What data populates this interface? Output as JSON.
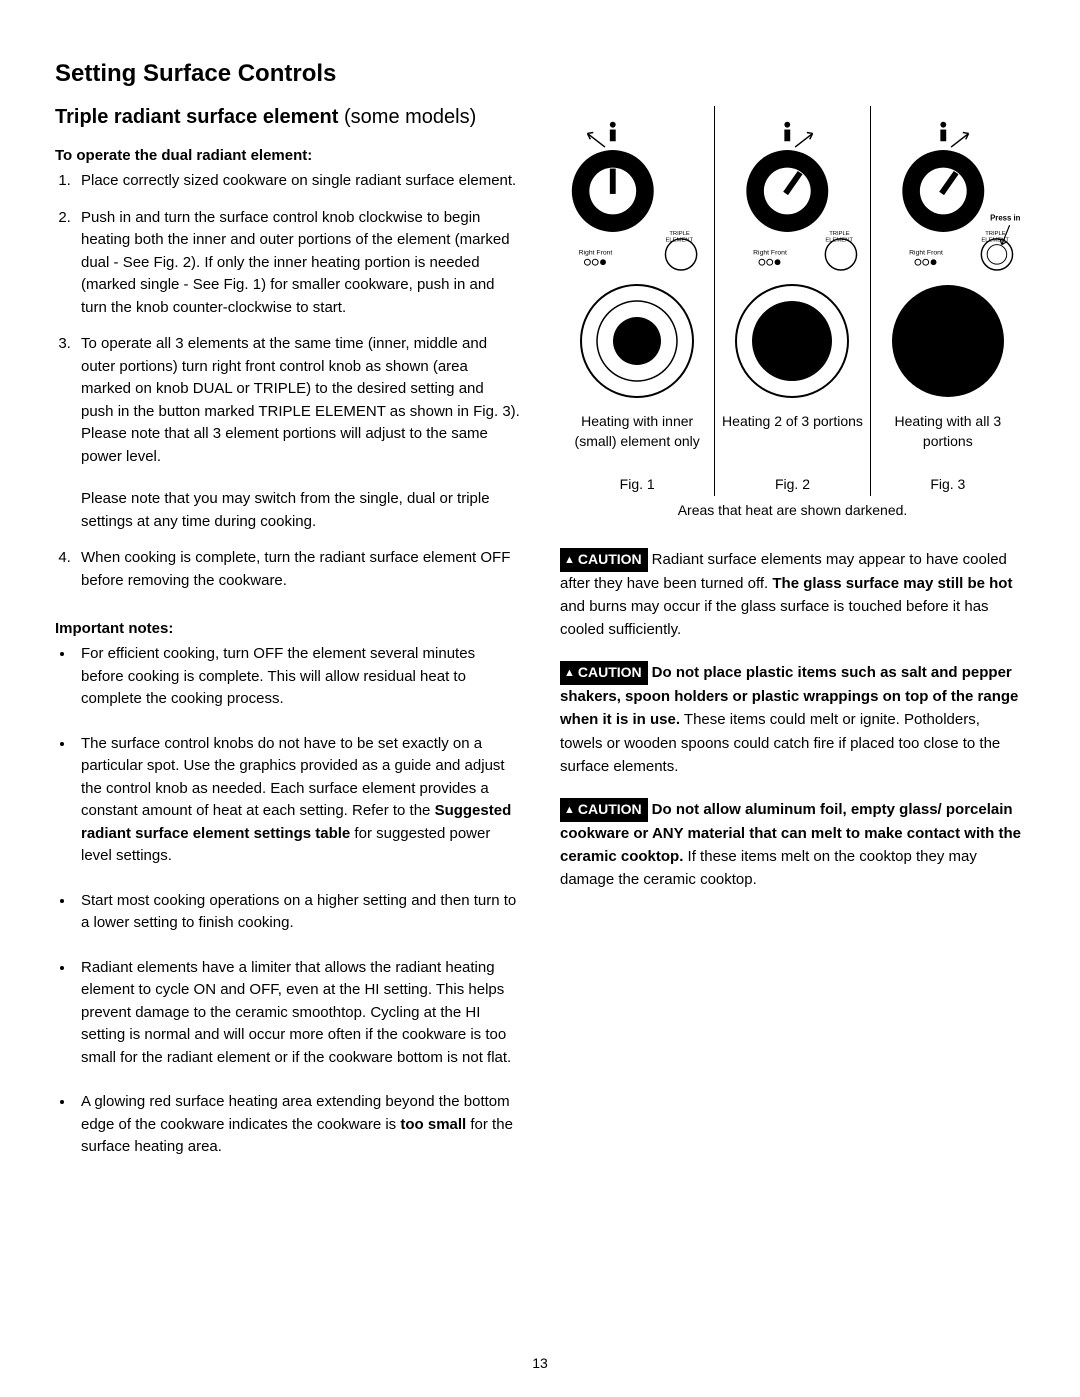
{
  "page_number": "13",
  "title": "Setting Surface Controls",
  "subtitle_bold": "Triple radiant surface element ",
  "subtitle_normal": "(some models)",
  "operate_heading": "To operate the dual radiant element:",
  "steps": [
    "Place correctly sized cookware on single radiant surface element.",
    "Push in and turn the surface control knob clockwise to begin heating both the inner and outer portions of the element (marked dual - See Fig. 2). If only the inner heating portion is needed (marked single - See Fig. 1) for smaller cookware, push in and turn the knob counter-clockwise to start.",
    "To operate all 3 elements at the same time (inner, middle and outer portions) turn right front control knob as shown (area marked on knob DUAL or TRIPLE) to the desired setting and push in the button marked TRIPLE ELEMENT as shown in Fig. 3). Please note that all 3 element portions will adjust to the same power level.",
    "When cooking is complete, turn the radiant surface element OFF before removing the cookware."
  ],
  "step3_note": "Please note that you may switch from the single, dual or triple settings at any time during cooking.",
  "important_heading": "Important notes:",
  "notes": [
    "For efficient cooking, turn OFF the element several minutes before cooking is complete. This will allow residual heat to complete the cooking process.",
    "The surface control knobs do not have to be set exactly on a particular spot. Use the graphics provided as a guide and adjust the control knob as needed. Each surface element provides a constant amount of heat at each setting. Refer to the <b>Suggested radiant surface element settings table</b> for suggested power level settings.",
    "Start most cooking operations on a higher setting and then turn to a lower setting to finish cooking.",
    "Radiant elements have a limiter that allows the radiant heating element to cycle ON and OFF, even at the HI setting. This helps prevent damage to the ceramic smoothtop. Cycling at the HI setting is normal and will occur more often if the cookware is too small for the radiant element or if the cookware bottom is not flat.",
    "A glowing red surface heating area extending beyond the bottom edge of the cookware indicates the cookware is <b>too small</b> for the surface heating area."
  ],
  "figures": {
    "knob_label_left": "Right Front",
    "knob_label_right_top": "TRIPLE",
    "knob_label_right_bot": "ELEMENT",
    "knob_label_right_sub": "ON/OFF",
    "press_in": "Press in",
    "captions": [
      "Heating with inner (small) element only",
      "Heating 2 of 3 portions",
      "Heating with all 3 portions"
    ],
    "labels": [
      "Fig. 1",
      "Fig. 2",
      "Fig. 3"
    ],
    "darkened": "Areas that heat are shown darkened."
  },
  "caution_label": "CAUTION",
  "cautions": [
    "Radiant surface elements may appear to have cooled after they have been turned off. <b>The glass surface may still be hot</b> and burns may occur if the glass surface is touched before it has cooled sufficiently.",
    "<b>Do not place plastic items such as salt and pepper shakers, spoon holders or plastic wrappings on top of the range when it is in use.</b> These items could melt or ignite. Potholders, towels or wooden spoons could catch fire if placed too close to the surface elements.",
    "<b>Do not allow aluminum foil, empty glass/ porcelain cookware or ANY material that can melt to make contact with the ceramic cooktop.</b> If these items melt on the cooktop they may damage the ceramic cooktop."
  ]
}
